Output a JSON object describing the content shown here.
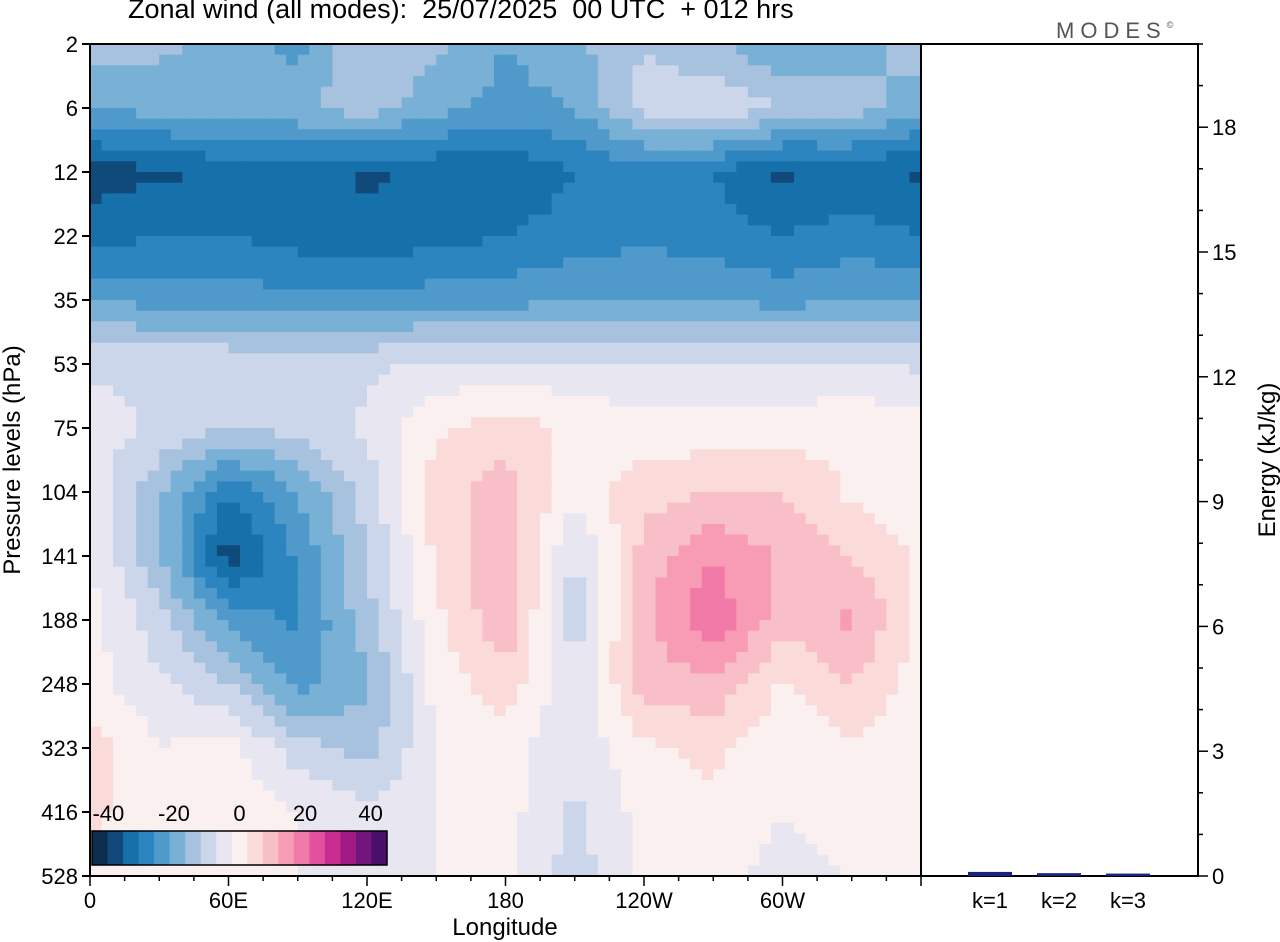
{
  "title": "Zonal wind (all modes):  25/07/2025  00 UTC  + 012 hrs",
  "logo": "MODES",
  "logo_mark": "©",
  "chart_data": [
    {
      "type": "heatmap",
      "name": "zonal-wind-cross-section",
      "xlabel": "Longitude",
      "ylabel": "Pressure levels (hPa)",
      "x_range_deg": [
        0,
        360
      ],
      "x_ticks": [
        {
          "deg": 0,
          "label": "0"
        },
        {
          "deg": 60,
          "label": "60E"
        },
        {
          "deg": 120,
          "label": "120E"
        },
        {
          "deg": 180,
          "label": "180"
        },
        {
          "deg": 240,
          "label": "120W"
        },
        {
          "deg": 300,
          "label": "60W"
        }
      ],
      "pressure_levels_hPa": [
        2,
        6,
        12,
        22,
        35,
        53,
        75,
        104,
        141,
        188,
        248,
        323,
        416,
        528
      ],
      "colorbar": {
        "labels": [
          "-40",
          "-20",
          "0",
          "20",
          "40"
        ],
        "levels": [
          -45,
          -40,
          -35,
          -30,
          -25,
          -20,
          -15,
          -10,
          -5,
          0,
          5,
          10,
          15,
          20,
          25,
          30,
          35,
          40,
          45
        ],
        "colors": [
          "#0d2d4f",
          "#0f4a7b",
          "#1670aa",
          "#2d85bf",
          "#4f9acb",
          "#79b0d6",
          "#a6c2df",
          "#ccd6ea",
          "#e8e6f1",
          "#fbf0f0",
          "#fbdada",
          "#f9bfc8",
          "#f79cb4",
          "#f27aa8",
          "#e2509e",
          "#c92d91",
          "#a01a86",
          "#72157d",
          "#4a0f6b"
        ]
      },
      "field": {
        "x_deg": [
          0,
          30,
          60,
          90,
          120,
          150,
          180,
          210,
          240,
          270,
          300,
          330,
          360
        ],
        "rows": [
          {
            "p": 2,
            "u": [
              -12,
              -14,
              -16,
              -22,
              -10,
              -14,
              -20,
              -16,
              -10,
              -14,
              -20,
              -18,
              -12
            ]
          },
          {
            "p": 6,
            "u": [
              -20,
              -18,
              -16,
              -16,
              -12,
              -18,
              -22,
              -20,
              -8,
              -6,
              -10,
              -12,
              -18
            ]
          },
          {
            "p": 12,
            "u": [
              -38,
              -36,
              -34,
              -32,
              -36,
              -34,
              -34,
              -30,
              -28,
              -30,
              -36,
              -34,
              -36
            ]
          },
          {
            "p": 22,
            "u": [
              -32,
              -30,
              -30,
              -32,
              -34,
              -32,
              -30,
              -28,
              -26,
              -28,
              -30,
              -28,
              -30
            ]
          },
          {
            "p": 35,
            "u": [
              -20,
              -22,
              -22,
              -24,
              -24,
              -22,
              -22,
              -20,
              -20,
              -20,
              -22,
              -20,
              -20
            ]
          },
          {
            "p": 53,
            "u": [
              -6,
              -6,
              -6,
              -6,
              -6,
              -4,
              -4,
              -4,
              -4,
              -4,
              -4,
              -4,
              -6
            ]
          },
          {
            "p": 75,
            "u": [
              -2,
              -6,
              -10,
              -8,
              -4,
              4,
              8,
              4,
              2,
              2,
              2,
              4,
              2
            ]
          },
          {
            "p": 104,
            "u": [
              -2,
              -14,
              -30,
              -20,
              -8,
              8,
              12,
              2,
              8,
              10,
              10,
              4,
              0
            ]
          },
          {
            "p": 141,
            "u": [
              0,
              -14,
              -38,
              -24,
              -10,
              6,
              14,
              -6,
              12,
              20,
              14,
              10,
              4
            ]
          },
          {
            "p": 188,
            "u": [
              2,
              -8,
              -22,
              -26,
              -12,
              4,
              14,
              -8,
              14,
              24,
              12,
              16,
              4
            ]
          },
          {
            "p": 248,
            "u": [
              2,
              -4,
              -10,
              -22,
              -16,
              2,
              8,
              -4,
              12,
              14,
              4,
              10,
              2
            ]
          },
          {
            "p": 323,
            "u": [
              8,
              0,
              2,
              -8,
              -12,
              0,
              2,
              -4,
              4,
              6,
              2,
              4,
              2
            ]
          },
          {
            "p": 416,
            "u": [
              6,
              2,
              4,
              0,
              -4,
              0,
              2,
              -6,
              2,
              4,
              0,
              2,
              0
            ]
          },
          {
            "p": 528,
            "u": [
              4,
              0,
              2,
              0,
              -2,
              0,
              2,
              -8,
              2,
              2,
              -2,
              0,
              0
            ]
          }
        ]
      }
    },
    {
      "type": "bar",
      "name": "energy-by-wavenumber",
      "ylabel": "Energy (kJ/kg)",
      "ylim": [
        0,
        20
      ],
      "y_ticks": [
        0,
        3,
        6,
        9,
        12,
        15,
        18
      ],
      "categories": [
        "k=1",
        "k=2",
        "k=3"
      ],
      "values": [
        0.05,
        0.02,
        0.01
      ],
      "bar_color": "#1a237e"
    }
  ]
}
